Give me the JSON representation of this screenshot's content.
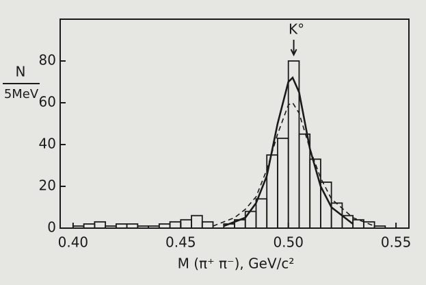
{
  "chart_data": {
    "type": "histogram",
    "xlabel": "M (π⁺ π⁻), GeV/c²",
    "ylabel": [
      "N",
      "5MeV"
    ],
    "annotation": "K°",
    "bins": [
      0.4,
      0.405,
      0.41,
      0.415,
      0.42,
      0.425,
      0.43,
      0.435,
      0.44,
      0.445,
      0.45,
      0.455,
      0.46,
      0.465,
      0.47,
      0.475,
      0.48,
      0.485,
      0.49,
      0.495,
      0.5,
      0.505,
      0.51,
      0.515,
      0.52,
      0.525,
      0.53,
      0.535,
      0.54,
      0.545,
      0.55
    ],
    "counts": [
      1,
      2,
      3,
      1,
      2,
      2,
      1,
      1,
      2,
      3,
      4,
      6,
      3,
      0,
      2,
      4,
      8,
      14,
      35,
      43,
      80,
      45,
      33,
      22,
      12,
      6,
      4,
      3,
      1,
      0
    ],
    "color": "#1a1a1a",
    "curves": [
      {
        "x": [
          0.47,
          0.48,
          0.485,
          0.49,
          0.495,
          0.5,
          0.502,
          0.505,
          0.51,
          0.515,
          0.52,
          0.53
        ],
        "values": [
          1,
          5,
          12,
          25,
          50,
          70,
          72,
          65,
          38,
          20,
          10,
          2
        ],
        "dashed": false
      },
      {
        "x": [
          0.465,
          0.475,
          0.48,
          0.485,
          0.49,
          0.495,
          0.5,
          0.502,
          0.505,
          0.51,
          0.515,
          0.52,
          0.53,
          0.54
        ],
        "values": [
          1,
          5,
          9,
          15,
          28,
          45,
          59,
          60,
          55,
          38,
          24,
          14,
          5,
          1
        ],
        "dashed": true
      }
    ],
    "xlim": [
      0.394,
      0.556
    ],
    "ylim": [
      0,
      100
    ],
    "xticks": [
      {
        "value": 0.4,
        "label": "0.40"
      },
      0.45,
      {
        "value": 0.5,
        "label": "0.50"
      },
      0.55
    ],
    "yticks": [
      0,
      20,
      40,
      60,
      80
    ]
  }
}
